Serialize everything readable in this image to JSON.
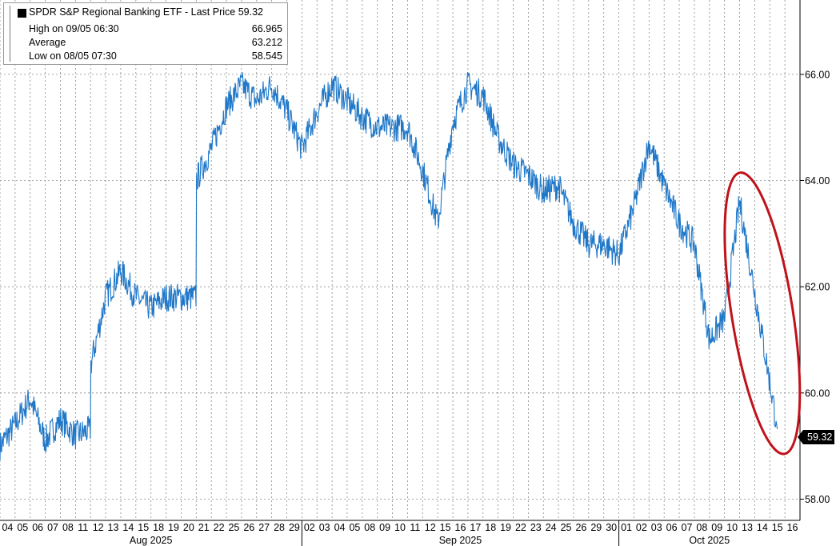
{
  "legend": {
    "title": "SPDR S&P Regional Banking ETF - Last Price 59.32",
    "rows": [
      {
        "label": "High on 09/05 06:30",
        "value": "66.965"
      },
      {
        "label": "Average",
        "value": "63.212"
      },
      {
        "label": "Low on 08/05 07:30",
        "value": "58.545"
      }
    ]
  },
  "last_price_tag": "59.32",
  "colors": {
    "line": "#1f77c8",
    "annotation": "#c0121a",
    "grid": "#8a8a8a"
  },
  "chart_data": {
    "type": "line",
    "title": "SPDR S&P Regional Banking ETF - Last Price 59.32",
    "xlabel": "",
    "ylabel": "",
    "ylim": [
      57.6,
      67.4
    ],
    "y_ticks": [
      58,
      60,
      62,
      64,
      66
    ],
    "y_tick_labels": [
      "58.00",
      "60.00",
      "62.00",
      "64.00",
      "66.00"
    ],
    "grid": true,
    "y_axis_side": "right",
    "x_days": [
      "04",
      "05",
      "06",
      "07",
      "08",
      "11",
      "12",
      "13",
      "14",
      "15",
      "18",
      "19",
      "20",
      "21",
      "22",
      "25",
      "26",
      "27",
      "28",
      "29",
      "02",
      "03",
      "04",
      "05",
      "08",
      "09",
      "10",
      "11",
      "12",
      "15",
      "16",
      "17",
      "18",
      "19",
      "22",
      "23",
      "24",
      "25",
      "26",
      "29",
      "30",
      "01",
      "02",
      "03",
      "06",
      "07",
      "08",
      "09",
      "10",
      "13",
      "14",
      "15",
      "16"
    ],
    "month_labels": [
      {
        "label": "Aug 2025",
        "first_day_index": 0
      },
      {
        "label": "Sep 2025",
        "first_day_index": 20
      },
      {
        "label": "Oct 2025",
        "first_day_index": 41
      }
    ],
    "series": [
      {
        "daily_levels": [
          [
            0,
            59.0
          ],
          [
            1,
            59.4
          ],
          [
            2,
            59.9
          ],
          [
            3,
            59.1
          ],
          [
            4,
            59.5
          ],
          [
            5,
            59.2
          ],
          [
            5.99,
            59.3
          ],
          [
            6,
            60.5
          ],
          [
            7,
            61.8
          ],
          [
            8,
            62.3
          ],
          [
            9,
            61.8
          ],
          [
            10,
            61.6
          ],
          [
            11,
            61.8
          ],
          [
            12,
            61.8
          ],
          [
            12.99,
            61.8
          ],
          [
            13,
            64.0
          ],
          [
            14,
            64.6
          ],
          [
            15,
            65.4
          ],
          [
            16,
            65.8
          ],
          [
            17,
            65.5
          ],
          [
            18,
            65.8
          ],
          [
            19,
            65.3
          ],
          [
            20,
            64.6
          ],
          [
            21,
            65.3
          ],
          [
            22,
            65.8
          ],
          [
            23,
            65.5
          ],
          [
            24,
            65.2
          ],
          [
            25,
            65.0
          ],
          [
            26,
            65.0
          ],
          [
            27,
            65.0
          ],
          [
            28,
            64.2
          ],
          [
            29,
            63.2
          ],
          [
            30,
            65.1
          ],
          [
            31,
            65.8
          ],
          [
            32,
            65.6
          ],
          [
            33,
            64.8
          ],
          [
            34,
            64.3
          ],
          [
            35,
            64.1
          ],
          [
            36,
            63.8
          ],
          [
            37,
            63.9
          ],
          [
            38,
            63.2
          ],
          [
            39,
            62.8
          ],
          [
            40,
            62.8
          ],
          [
            41,
            62.6
          ],
          [
            42,
            63.5
          ],
          [
            43,
            64.7
          ],
          [
            44,
            63.9
          ],
          [
            45,
            63.2
          ],
          [
            46,
            62.8
          ],
          [
            47,
            61.0
          ],
          [
            48,
            61.4
          ],
          [
            49,
            63.6
          ],
          [
            50,
            61.9
          ],
          [
            51,
            60.2
          ],
          [
            51.5,
            59.32
          ]
        ],
        "high": 66.965,
        "average": 63.212,
        "low": 58.545,
        "last": 59.32
      }
    ],
    "annotation": {
      "shape": "ellipse",
      "color": "#c0121a",
      "x_day_range": [
        49,
        52
      ],
      "y_range": [
        59.0,
        64.0
      ]
    }
  }
}
